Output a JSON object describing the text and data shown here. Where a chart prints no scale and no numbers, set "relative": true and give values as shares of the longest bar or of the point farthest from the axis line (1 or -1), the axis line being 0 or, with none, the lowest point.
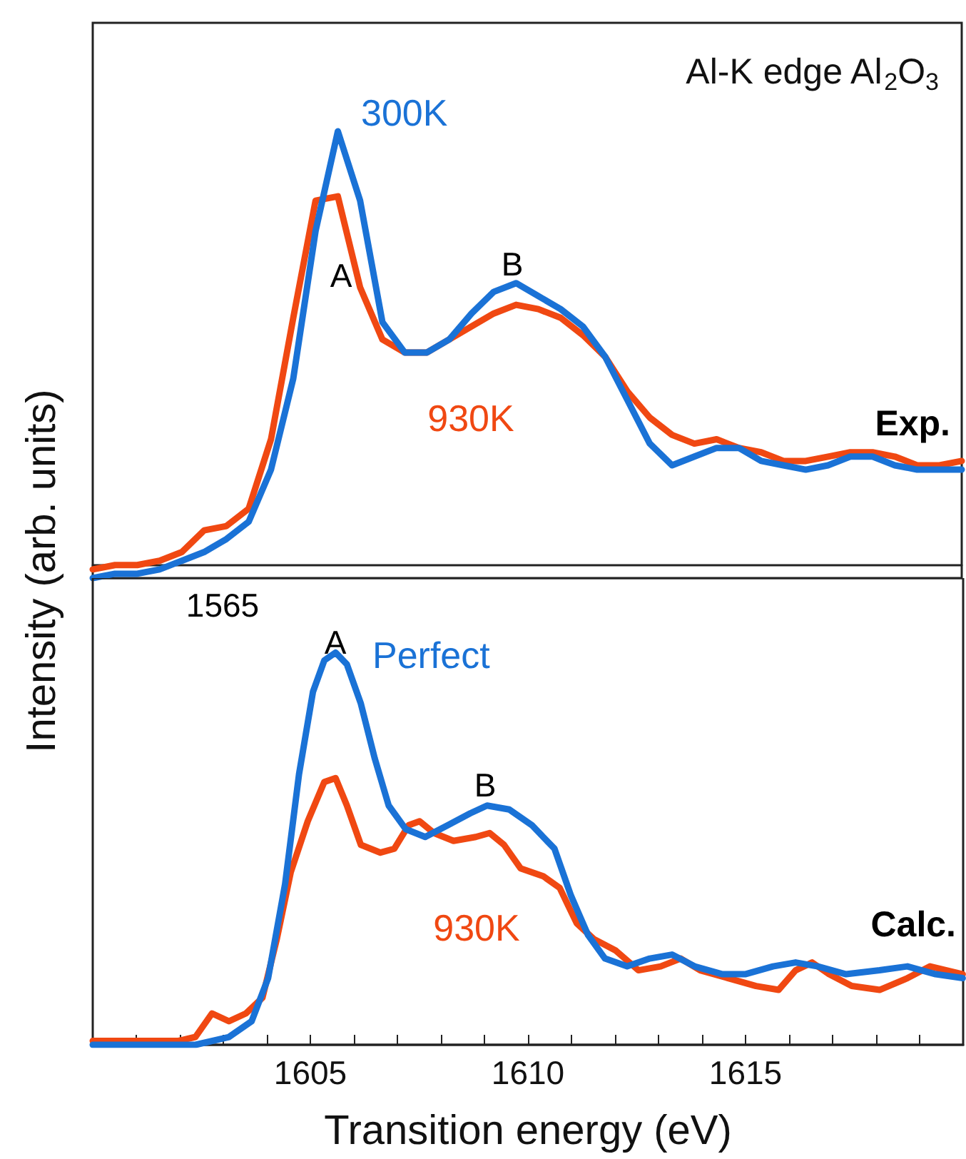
{
  "chart_data": [
    {
      "type": "line",
      "title": "Al-K edge Al$_{2}$O$_{3}$",
      "ylabel": "Intensity (arb. units)",
      "relative": true,
      "categories": [
        null,
        null,
        null,
        null,
        null,
        null,
        null,
        null,
        null,
        null,
        null,
        null,
        null,
        null,
        null,
        null,
        null,
        null,
        null,
        null,
        null,
        null,
        null,
        null,
        null,
        null,
        null,
        null,
        null,
        null,
        null,
        null,
        null,
        null,
        null,
        null,
        null,
        null,
        null,
        null
      ],
      "annotations": [
        "A",
        "B",
        "Exp.",
        "1565"
      ],
      "series": [
        {
          "name": "300K",
          "color": "#1a72d6",
          "values": [
            -0.03,
            -0.02,
            -0.02,
            -0.01,
            0.01,
            0.03,
            0.06,
            0.1,
            0.22,
            0.43,
            0.77,
            1,
            0.84,
            0.56,
            0.49,
            0.49,
            0.52,
            0.58,
            0.63,
            0.65,
            0.62,
            0.59,
            0.55,
            0.48,
            0.38,
            0.28,
            0.23,
            0.25,
            0.27,
            0.27,
            0.24,
            0.23,
            0.22,
            0.23,
            0.25,
            0.25,
            0.23,
            0.22,
            0.22,
            0.22
          ]
        },
        {
          "name": "930K",
          "color": "#f04812",
          "values": [
            -0.01,
            0,
            0,
            0.01,
            0.03,
            0.08,
            0.09,
            0.13,
            0.29,
            0.57,
            0.84,
            0.85,
            0.64,
            0.52,
            0.49,
            0.49,
            0.52,
            0.55,
            0.58,
            0.6,
            0.59,
            0.57,
            0.53,
            0.48,
            0.4,
            0.34,
            0.3,
            0.28,
            0.29,
            0.27,
            0.26,
            0.24,
            0.24,
            0.25,
            0.26,
            0.26,
            0.25,
            0.23,
            0.23,
            0.24
          ]
        }
      ]
    },
    {
      "type": "line",
      "xlabel": "Transition energy (eV)",
      "relative": true,
      "xlim": [
        1600,
        1620
      ],
      "xticks": [
        {
          "value": 1601,
          "label": null
        },
        {
          "value": 1602,
          "label": null
        },
        {
          "value": 1603,
          "label": null
        },
        {
          "value": 1604,
          "label": null
        },
        1605,
        {
          "value": 1606,
          "label": null
        },
        {
          "value": 1607,
          "label": null
        },
        {
          "value": 1608,
          "label": null
        },
        {
          "value": 1609,
          "label": null
        },
        1610,
        {
          "value": 1611,
          "label": null
        },
        {
          "value": 1612,
          "label": null
        },
        {
          "value": 1613,
          "label": null
        },
        {
          "value": 1614,
          "label": null
        },
        1615,
        {
          "value": 1616,
          "label": null
        },
        {
          "value": 1617,
          "label": null
        },
        {
          "value": 1618,
          "label": null
        },
        {
          "value": 1619,
          "label": null
        }
      ],
      "annotations": [
        "A",
        "B",
        "Calc."
      ],
      "series": [
        {
          "name": "Perfect",
          "color": "#1a72d6",
          "x": [
            1600,
            1602.36,
            1603.13,
            1603.65,
            1604.03,
            1604.42,
            1604.74,
            1605.06,
            1605.32,
            1605.58,
            1605.84,
            1606.16,
            1606.48,
            1606.8,
            1607.19,
            1607.64,
            1608.16,
            1608.67,
            1609.06,
            1609.57,
            1610.09,
            1610.61,
            1610.99,
            1611.38,
            1611.77,
            1612.28,
            1612.8,
            1613.31,
            1613.83,
            1614.47,
            1614.99,
            1615.63,
            1616.15,
            1616.66,
            1617.31,
            1618.08,
            1618.72,
            1619.37,
            1619.99
          ],
          "values": [
            0,
            0,
            0.02,
            0.06,
            0.17,
            0.41,
            0.69,
            0.9,
            0.98,
            1,
            0.97,
            0.87,
            0.73,
            0.61,
            0.55,
            0.53,
            0.56,
            0.59,
            0.61,
            0.6,
            0.56,
            0.5,
            0.38,
            0.28,
            0.22,
            0.2,
            0.22,
            0.23,
            0.2,
            0.18,
            0.18,
            0.2,
            0.21,
            0.2,
            0.18,
            0.19,
            0.2,
            0.18,
            0.17
          ]
        },
        {
          "name": "930K",
          "color": "#f04812",
          "x": [
            1600,
            1601.97,
            1602.36,
            1602.74,
            1603.13,
            1603.52,
            1603.9,
            1604.23,
            1604.55,
            1604.94,
            1605.32,
            1605.58,
            1605.84,
            1606.16,
            1606.61,
            1606.93,
            1607.26,
            1607.51,
            1607.84,
            1608.29,
            1608.8,
            1609.12,
            1609.45,
            1609.83,
            1610.35,
            1610.73,
            1611.12,
            1611.51,
            1612.02,
            1612.54,
            1613.05,
            1613.51,
            1613.96,
            1614.6,
            1615.24,
            1615.76,
            1616.15,
            1616.53,
            1616.92,
            1617.44,
            1618.08,
            1618.72,
            1619.24,
            1619.99
          ],
          "values": [
            0.01,
            0.01,
            0.02,
            0.08,
            0.06,
            0.08,
            0.12,
            0.27,
            0.44,
            0.57,
            0.67,
            0.68,
            0.61,
            0.51,
            0.49,
            0.5,
            0.56,
            0.57,
            0.54,
            0.52,
            0.53,
            0.54,
            0.51,
            0.45,
            0.43,
            0.4,
            0.31,
            0.27,
            0.24,
            0.19,
            0.2,
            0.22,
            0.19,
            0.17,
            0.15,
            0.14,
            0.19,
            0.21,
            0.18,
            0.15,
            0.14,
            0.17,
            0.2,
            0.18
          ]
        }
      ]
    }
  ]
}
